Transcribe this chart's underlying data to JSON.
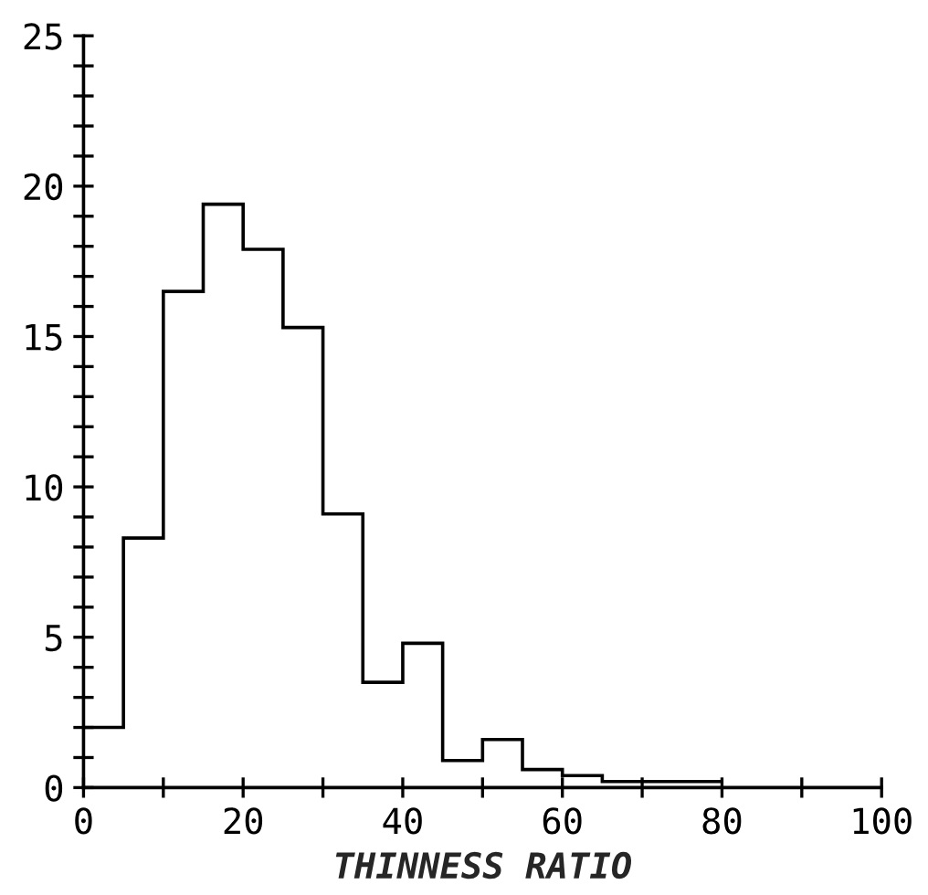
{
  "chart_data": {
    "type": "histogram",
    "xlabel": "THINNESS RATIO",
    "bins": [
      0,
      5,
      10,
      15,
      20,
      25,
      30,
      35,
      40,
      45,
      50,
      55,
      60,
      65,
      70,
      75,
      80
    ],
    "values": [
      2.0,
      8.3,
      16.5,
      19.4,
      17.9,
      15.3,
      9.1,
      3.5,
      4.8,
      0.9,
      1.6,
      0.6,
      0.4,
      0.2,
      0.2,
      0.2
    ],
    "color": "#000000",
    "xlim": [
      0,
      100
    ],
    "ylim": [
      0,
      25
    ],
    "xticks": [
      0,
      {
        "value": 10,
        "label": null
      },
      20,
      {
        "value": 30,
        "label": null
      },
      40,
      {
        "value": 50,
        "label": null
      },
      60,
      {
        "value": 70,
        "label": null
      },
      80,
      {
        "value": 90,
        "label": null
      },
      100
    ],
    "yticks": [
      0,
      {
        "value": 1,
        "label": null
      },
      {
        "value": 2,
        "label": null
      },
      {
        "value": 3,
        "label": null
      },
      {
        "value": 4,
        "label": null
      },
      5,
      {
        "value": 6,
        "label": null
      },
      {
        "value": 7,
        "label": null
      },
      {
        "value": 8,
        "label": null
      },
      {
        "value": 9,
        "label": null
      },
      10,
      {
        "value": 11,
        "label": null
      },
      {
        "value": 12,
        "label": null
      },
      {
        "value": 13,
        "label": null
      },
      {
        "value": 14,
        "label": null
      },
      15,
      {
        "value": 16,
        "label": null
      },
      {
        "value": 17,
        "label": null
      },
      {
        "value": 18,
        "label": null
      },
      {
        "value": 19,
        "label": null
      },
      20,
      {
        "value": 21,
        "label": null
      },
      {
        "value": 22,
        "label": null
      },
      {
        "value": 23,
        "label": null
      },
      {
        "value": 24,
        "label": null
      },
      25
    ],
    "grid": false
  }
}
